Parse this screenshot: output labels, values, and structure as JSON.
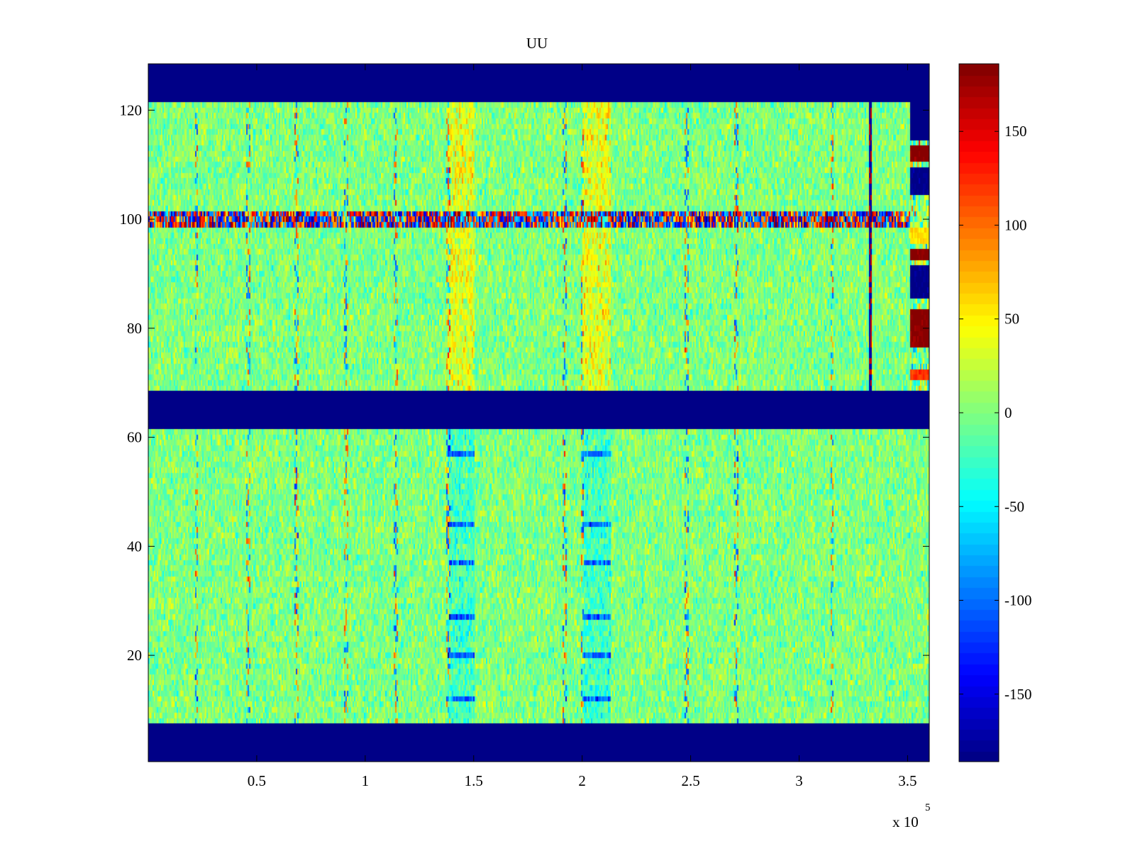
{
  "chart_data": {
    "type": "heatmap",
    "title": "UU",
    "xlabel": "",
    "ylabel": "",
    "colormap": "jet",
    "x_multiplier_label": "x 10",
    "x_multiplier_exponent": "5",
    "xlim": [
      0,
      360000
    ],
    "ylim": [
      0.5,
      128.5
    ],
    "clim": [
      -186,
      186
    ],
    "grid": false,
    "x_ticks": [
      {
        "value": 50000,
        "label": "0.5"
      },
      {
        "value": 100000,
        "label": "1"
      },
      {
        "value": 150000,
        "label": "1.5"
      },
      {
        "value": 200000,
        "label": "2"
      },
      {
        "value": 250000,
        "label": "2.5"
      },
      {
        "value": 300000,
        "label": "3"
      },
      {
        "value": 350000,
        "label": "3.5"
      }
    ],
    "y_ticks": [
      {
        "value": 20,
        "label": "20"
      },
      {
        "value": 40,
        "label": "40"
      },
      {
        "value": 60,
        "label": "60"
      },
      {
        "value": 80,
        "label": "80"
      },
      {
        "value": 100,
        "label": "100"
      },
      {
        "value": 120,
        "label": "120"
      }
    ],
    "colorbar_ticks": [
      {
        "value": 150,
        "label": "150"
      },
      {
        "value": 100,
        "label": "100"
      },
      {
        "value": 50,
        "label": "50"
      },
      {
        "value": 0,
        "label": "0"
      },
      {
        "value": -50,
        "label": "-50"
      },
      {
        "value": -100,
        "label": "-100"
      },
      {
        "value": -150,
        "label": "-150"
      }
    ],
    "regions": {
      "empty_row_bands": [
        [
          0.5,
          7.5
        ],
        [
          61.5,
          68.5
        ],
        [
          121.5,
          128.5
        ]
      ],
      "empty_value": -186,
      "lower_data_rows": [
        7.5,
        61.5
      ],
      "upper_data_rows": [
        68.5,
        121.5
      ],
      "upper_data_x_end": 351000,
      "noise_mean": 0,
      "noise_sd": 18,
      "warm_columns_x": [
        [
          138000,
          150000
        ],
        [
          200000,
          213000
        ]
      ],
      "warm_columns_upper_shift": 35,
      "cool_columns_lower_shift": -35,
      "strong_cool_rows_lower": [
        57,
        44,
        37,
        27,
        20,
        12
      ],
      "streak_x": [
        22000,
        46000,
        68000,
        91000,
        114000,
        138000,
        192000,
        200000,
        248000,
        271000,
        315000
      ],
      "noisy_row": 100,
      "blue_column_x": 332500,
      "right_strip_x": [
        351000,
        360000
      ],
      "right_strip_rows": [
        {
          "y": [
            110.5,
            113.5
          ],
          "value": 186
        },
        {
          "y": [
            104.5,
            109.5
          ],
          "value": -186
        },
        {
          "y": [
            95.5,
            98.5
          ],
          "value": 60
        },
        {
          "y": [
            92.5,
            94.5
          ],
          "value": 186
        },
        {
          "y": [
            85.5,
            91.5
          ],
          "value": -186
        },
        {
          "y": [
            76.5,
            83.5
          ],
          "value": 186
        },
        {
          "y": [
            70.5,
            72.5
          ],
          "value": 120
        }
      ]
    }
  }
}
